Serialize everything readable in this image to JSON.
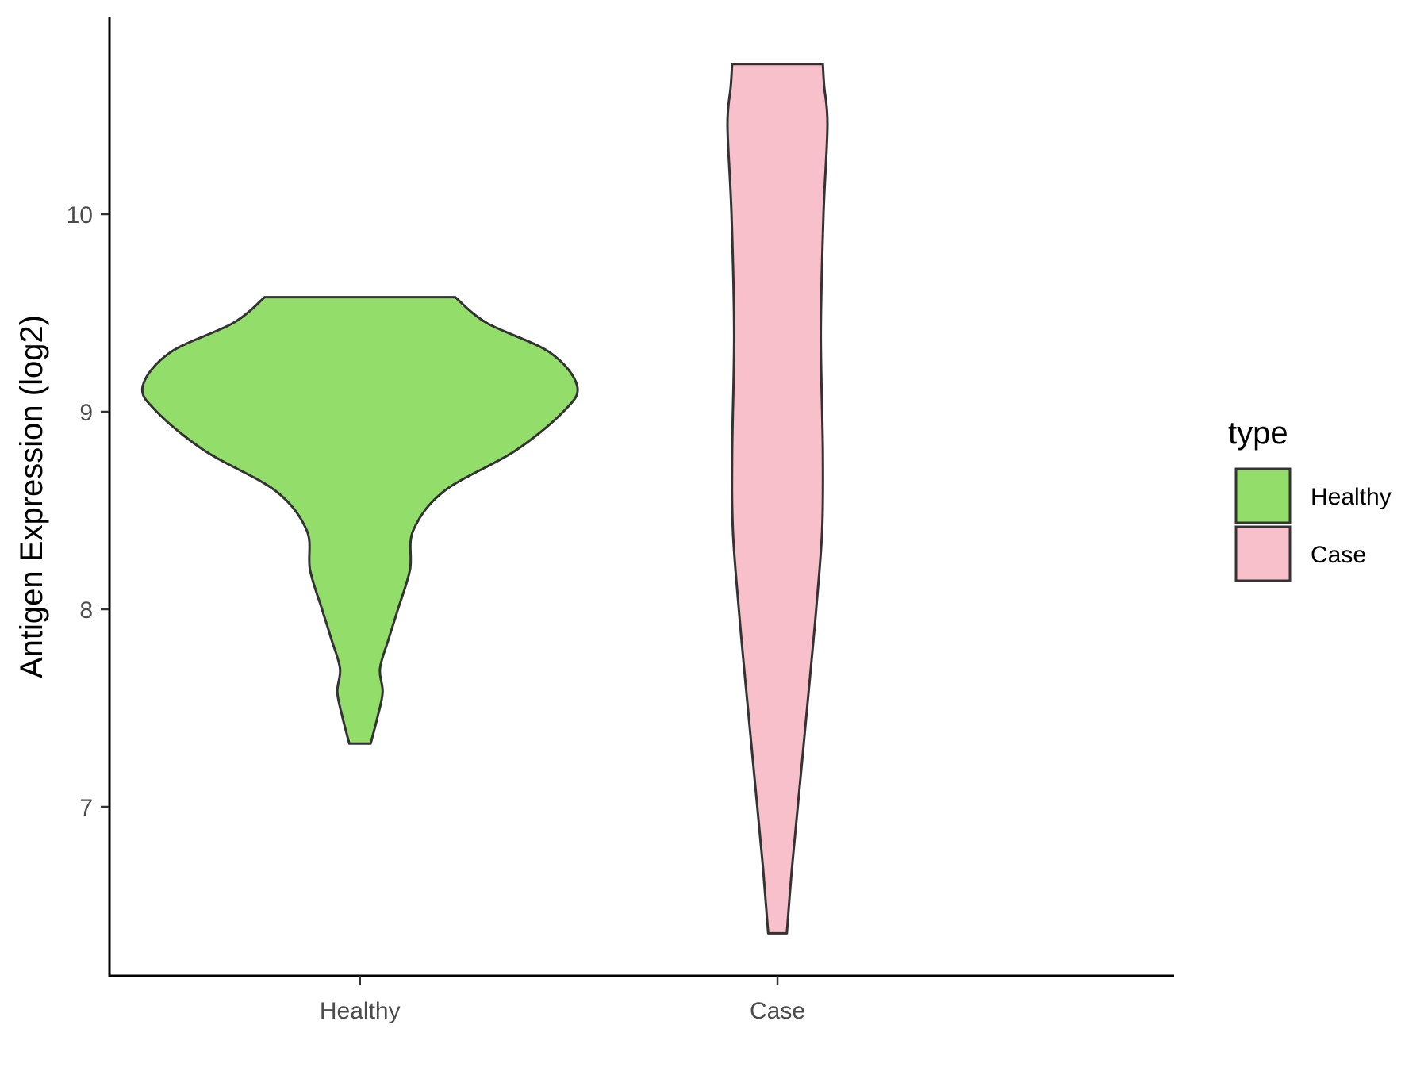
{
  "chart_data": {
    "type": "violin",
    "title": "",
    "xlabel": "",
    "ylabel": "Antigen Expression (log2)",
    "ylim": [
      6.2,
      10.98
    ],
    "yticks": [
      7,
      8,
      9,
      10
    ],
    "yticklabels": [
      "7",
      "8",
      "9",
      "10"
    ],
    "categories": [
      "Healthy",
      "Case"
    ],
    "grid": false,
    "legend": {
      "title": "type",
      "placement": "right",
      "items": [
        {
          "label": "Healthy",
          "color": "#93dd6a"
        },
        {
          "label": "Case",
          "color": "#f7c0cb"
        }
      ]
    },
    "series": [
      {
        "name": "Healthy",
        "color": "#93dd6a",
        "min": 7.32,
        "max": 9.58,
        "density_profile": [
          [
            7.32,
            0.16
          ],
          [
            7.45,
            0.26
          ],
          [
            7.58,
            0.34
          ],
          [
            7.7,
            0.3
          ],
          [
            7.85,
            0.43
          ],
          [
            8.0,
            0.57
          ],
          [
            8.2,
            0.75
          ],
          [
            8.4,
            0.8
          ],
          [
            8.6,
            1.27
          ],
          [
            8.8,
            2.32
          ],
          [
            9.0,
            3.05
          ],
          [
            9.13,
            3.26
          ],
          [
            9.3,
            2.85
          ],
          [
            9.45,
            1.9
          ],
          [
            9.58,
            1.43
          ]
        ]
      },
      {
        "name": "Case",
        "color": "#f7c0cb",
        "min": 6.36,
        "max": 10.76,
        "density_profile": [
          [
            6.36,
            0.14
          ],
          [
            6.7,
            0.22
          ],
          [
            7.2,
            0.36
          ],
          [
            7.7,
            0.5
          ],
          [
            8.0,
            0.58
          ],
          [
            8.4,
            0.67
          ],
          [
            8.8,
            0.68
          ],
          [
            9.4,
            0.65
          ],
          [
            10.0,
            0.69
          ],
          [
            10.45,
            0.75
          ],
          [
            10.65,
            0.7
          ],
          [
            10.76,
            0.68
          ]
        ]
      }
    ]
  }
}
